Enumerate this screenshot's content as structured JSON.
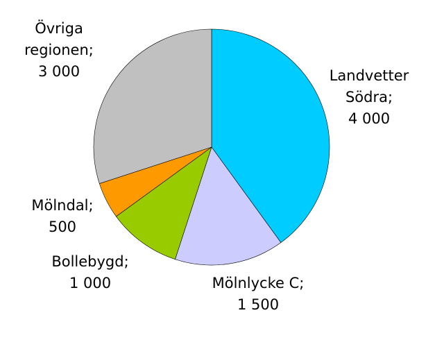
{
  "chart_data": {
    "type": "pie",
    "categories": [
      "Landvetter Södra;",
      "Mölnlycke C;",
      "Bollebygd;",
      "Mölndal;",
      "Övriga regionen;"
    ],
    "values": [
      4000,
      1500,
      1000,
      500,
      3000
    ],
    "value_labels": [
      "4 000",
      "1 500",
      "1 000",
      "500",
      "3 000"
    ],
    "colors": [
      "#00ccff",
      "#ccccff",
      "#99cc00",
      "#ff9900",
      "#c0c0c0"
    ]
  }
}
